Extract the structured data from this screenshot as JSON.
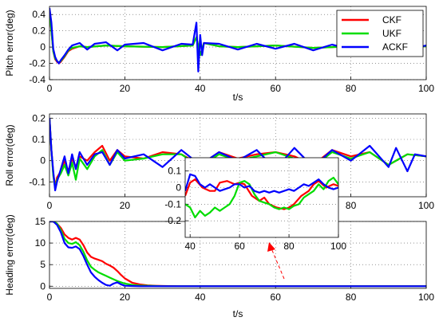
{
  "chart_data": [
    {
      "type": "line",
      "ylabel": "Pitch error(deg)",
      "xlabel": "t/s",
      "xlim": [
        0,
        100
      ],
      "ylim": [
        -0.4,
        0.5
      ],
      "xticks": [
        "0",
        "20",
        "40",
        "60",
        "80",
        "100"
      ],
      "yticks": [
        "0.4",
        "0.2",
        "0",
        "-0.2",
        "-0.4"
      ],
      "grid": true,
      "legend": {
        "position": "top-right",
        "entries": [
          "CKF",
          "UKF",
          "ACKF"
        ]
      },
      "series": [
        {
          "name": "CKF",
          "color": "#ff0000",
          "x": [
            0,
            0.5,
            1,
            1.5,
            2,
            2.5,
            3,
            4,
            5,
            6,
            8,
            10,
            15,
            20,
            30,
            38,
            39,
            40,
            41,
            45,
            50,
            60,
            70,
            80,
            90,
            100
          ],
          "y": [
            0.45,
            0.2,
            -0.05,
            -0.15,
            -0.18,
            -0.2,
            -0.18,
            -0.12,
            -0.05,
            -0.02,
            0.01,
            0.0,
            0.02,
            0.01,
            0.0,
            0.02,
            0.12,
            -0.1,
            0.05,
            0.01,
            0.0,
            0.02,
            -0.01,
            0.01,
            0.0,
            0.01
          ]
        },
        {
          "name": "UKF",
          "color": "#00dd00",
          "x": [
            0,
            0.5,
            1,
            1.5,
            2,
            2.5,
            3,
            4,
            5,
            6,
            8,
            10,
            15,
            20,
            30,
            38,
            39,
            40,
            41,
            45,
            50,
            60,
            70,
            80,
            90,
            100
          ],
          "y": [
            0.45,
            0.2,
            -0.05,
            -0.14,
            -0.17,
            -0.19,
            -0.17,
            -0.11,
            -0.04,
            -0.01,
            0.01,
            0.0,
            0.02,
            0.01,
            0.0,
            0.02,
            0.12,
            -0.1,
            0.05,
            0.01,
            0.0,
            0.02,
            -0.01,
            0.01,
            0.0,
            0.01
          ]
        },
        {
          "name": "ACKF",
          "color": "#0000ff",
          "x": [
            0,
            0.5,
            1,
            1.5,
            2,
            2.5,
            3,
            4,
            5,
            6,
            8,
            10,
            12,
            15,
            18,
            20,
            25,
            30,
            35,
            38,
            39,
            39.5,
            40,
            40.5,
            41,
            45,
            50,
            55,
            60,
            65,
            70,
            75,
            80,
            85,
            90,
            95,
            100
          ],
          "y": [
            0.48,
            0.3,
            -0.02,
            -0.12,
            -0.17,
            -0.2,
            -0.16,
            -0.1,
            -0.03,
            0.02,
            0.05,
            -0.03,
            0.04,
            0.06,
            -0.04,
            0.03,
            0.05,
            -0.04,
            0.04,
            0.03,
            0.3,
            -0.3,
            0.15,
            -0.1,
            0.05,
            0.04,
            -0.03,
            0.04,
            -0.02,
            0.04,
            -0.04,
            0.03,
            -0.03,
            0.04,
            0.03,
            -0.03,
            0.02
          ]
        }
      ]
    },
    {
      "type": "line",
      "ylabel": "Roll error(deg)",
      "xlabel": "",
      "xlim": [
        0,
        100
      ],
      "ylim": [
        -0.17,
        0.22
      ],
      "xticks": [
        "0",
        "20",
        "40",
        "60",
        "80",
        "100"
      ],
      "yticks": [
        "0.2",
        "0.1",
        "0",
        "-0.1"
      ],
      "grid": true,
      "series": [
        {
          "name": "CKF",
          "color": "#ff0000",
          "x": [
            0,
            0.5,
            1,
            1.5,
            2,
            3,
            4,
            5,
            6,
            7,
            8,
            10,
            12,
            14,
            16,
            18,
            20,
            25,
            30,
            35,
            40,
            45,
            50,
            55,
            60,
            65,
            70,
            75,
            80,
            85,
            90,
            95,
            100
          ],
          "y": [
            0.2,
            0.05,
            -0.06,
            -0.12,
            -0.08,
            -0.05,
            0.0,
            -0.05,
            0.01,
            -0.03,
            0.02,
            0.0,
            0.04,
            0.07,
            0.0,
            0.05,
            0.02,
            0.01,
            0.04,
            0.03,
            -0.02,
            0.04,
            0.01,
            0.03,
            0.04,
            0.02,
            -0.02,
            0.05,
            0.02,
            0.04,
            -0.02,
            0.03,
            0.02
          ]
        },
        {
          "name": "UKF",
          "color": "#00dd00",
          "x": [
            0,
            0.5,
            1,
            1.5,
            2,
            3,
            4,
            5,
            6,
            7,
            8,
            10,
            12,
            14,
            16,
            18,
            20,
            25,
            30,
            35,
            40,
            45,
            50,
            55,
            60,
            65,
            70,
            75,
            80,
            85,
            90,
            95,
            100
          ],
          "y": [
            0.2,
            0.05,
            -0.07,
            -0.13,
            -0.09,
            -0.06,
            -0.02,
            -0.07,
            -0.01,
            -0.09,
            0.01,
            -0.04,
            0.02,
            0.05,
            -0.02,
            0.04,
            0.0,
            0.01,
            0.03,
            0.03,
            -0.03,
            0.03,
            0.0,
            0.02,
            0.04,
            0.01,
            -0.03,
            0.04,
            0.01,
            0.04,
            -0.02,
            0.03,
            0.02
          ]
        },
        {
          "name": "ACKF",
          "color": "#0000ff",
          "x": [
            0,
            0.5,
            1,
            1.5,
            2,
            3,
            4,
            5,
            6,
            7,
            8,
            10,
            12,
            14,
            16,
            18,
            20,
            25,
            30,
            35,
            40,
            45,
            50,
            55,
            60,
            65,
            70,
            75,
            80,
            85,
            90,
            92,
            95,
            97,
            100
          ],
          "y": [
            0.2,
            0.05,
            -0.05,
            -0.14,
            -0.1,
            -0.04,
            0.02,
            -0.06,
            0.03,
            -0.04,
            0.04,
            -0.02,
            0.03,
            0.04,
            -0.02,
            0.05,
            0.01,
            0.03,
            -0.03,
            0.05,
            -0.02,
            0.04,
            0.0,
            0.05,
            -0.04,
            0.06,
            -0.03,
            0.05,
            0.0,
            0.07,
            -0.03,
            0.06,
            -0.05,
            0.03,
            0.02
          ]
        }
      ]
    },
    {
      "type": "line",
      "role": "inset",
      "xlim": [
        38,
        100
      ],
      "ylim": [
        -0.3,
        0.18
      ],
      "xticks": [
        "40",
        "60",
        "80",
        "100"
      ],
      "yticks": [
        "0.1",
        "0",
        "-0.1",
        "-0.2"
      ],
      "grid": true,
      "series": [
        {
          "name": "CKF",
          "color": "#ff0000",
          "x": [
            38,
            40,
            42,
            45,
            48,
            50,
            52,
            55,
            58,
            60,
            62,
            65,
            68,
            70,
            72,
            75,
            78,
            80,
            82,
            85,
            88,
            90,
            92,
            95,
            98,
            100
          ],
          "y": [
            -0.05,
            0.03,
            0.05,
            0.0,
            -0.02,
            -0.02,
            0.03,
            0.04,
            0.02,
            0.03,
            0.02,
            -0.05,
            -0.08,
            -0.06,
            -0.1,
            -0.12,
            -0.13,
            -0.12,
            -0.1,
            -0.05,
            -0.02,
            0.02,
            0.04,
            0.0,
            0.02,
            0.01
          ]
        },
        {
          "name": "UKF",
          "color": "#00dd00",
          "x": [
            38,
            40,
            42,
            44,
            46,
            48,
            50,
            52,
            54,
            56,
            58,
            60,
            62,
            64,
            66,
            68,
            70,
            72,
            74,
            76,
            78,
            80,
            82,
            84,
            86,
            88,
            90,
            92,
            94,
            96,
            98,
            100
          ],
          "y": [
            -0.1,
            -0.12,
            -0.18,
            -0.14,
            -0.17,
            -0.15,
            -0.12,
            -0.14,
            -0.12,
            -0.1,
            -0.05,
            0.03,
            0.04,
            0.02,
            -0.04,
            -0.08,
            -0.09,
            -0.1,
            -0.12,
            -0.13,
            -0.12,
            -0.13,
            -0.11,
            -0.1,
            -0.06,
            -0.04,
            -0.02,
            0.02,
            -0.01,
            0.04,
            0.06,
            0.02
          ]
        },
        {
          "name": "ACKF",
          "color": "#0000ff",
          "x": [
            38,
            40,
            42,
            44,
            46,
            48,
            50,
            52,
            54,
            56,
            58,
            60,
            62,
            64,
            66,
            68,
            70,
            72,
            74,
            76,
            78,
            80,
            82,
            84,
            86,
            88,
            90,
            92,
            94,
            96,
            98,
            100
          ],
          "y": [
            -0.02,
            0.08,
            0.07,
            0.02,
            0.0,
            0.02,
            0.0,
            -0.02,
            -0.01,
            0.0,
            0.02,
            0.02,
            0.0,
            0.01,
            -0.02,
            -0.03,
            -0.02,
            -0.03,
            -0.02,
            -0.03,
            -0.02,
            -0.01,
            -0.02,
            0.0,
            0.02,
            0.01,
            0.03,
            0.05,
            0.02,
            0.0,
            -0.01,
            0.0
          ]
        }
      ]
    },
    {
      "type": "line",
      "ylabel": "Heading error(deg)",
      "xlabel": "t/s",
      "xlim": [
        0,
        100
      ],
      "ylim": [
        -0.5,
        15
      ],
      "xticks": [
        "0",
        "20",
        "40",
        "60",
        "80",
        "100"
      ],
      "yticks": [
        "15",
        "10",
        "5",
        "0"
      ],
      "grid": true,
      "series": [
        {
          "name": "CKF",
          "color": "#ff0000",
          "x": [
            0,
            1,
            2,
            3,
            4,
            5,
            6,
            7,
            8,
            9,
            10,
            11,
            12,
            13,
            14,
            15,
            16,
            17,
            18,
            19,
            20,
            22,
            24,
            26,
            28,
            30,
            35,
            40,
            50,
            60,
            70,
            80,
            90,
            100
          ],
          "y": [
            15,
            15,
            14.5,
            13.5,
            12,
            11.2,
            10.8,
            11.2,
            10.8,
            9.5,
            7.8,
            6.8,
            6.4,
            6.1,
            5.8,
            5.2,
            4.8,
            4.3,
            3.5,
            2.6,
            1.8,
            0.8,
            0.4,
            0.2,
            0.1,
            0.05,
            0.0,
            0.0,
            0.0,
            0.0,
            0.0,
            0.0,
            0.0,
            0.0
          ]
        },
        {
          "name": "UKF",
          "color": "#00dd00",
          "x": [
            0,
            1,
            2,
            3,
            4,
            5,
            6,
            7,
            8,
            9,
            10,
            11,
            12,
            13,
            14,
            15,
            16,
            17,
            18,
            19,
            20,
            22,
            24,
            26,
            28,
            30,
            35,
            40,
            50,
            60,
            70,
            80,
            90,
            100
          ],
          "y": [
            15,
            15,
            14.5,
            13,
            11,
            10,
            9.8,
            10.2,
            9.5,
            8,
            6,
            4.5,
            3.8,
            3.2,
            2.8,
            2.4,
            2.0,
            1.6,
            1.2,
            0.9,
            0.6,
            0.3,
            0.15,
            0.1,
            0.05,
            0.0,
            0.0,
            0.0,
            0.0,
            0.0,
            0.0,
            0.0,
            0.0,
            0.0
          ]
        },
        {
          "name": "ACKF",
          "color": "#0000ff",
          "x": [
            0,
            1,
            2,
            3,
            4,
            5,
            6,
            7,
            8,
            9,
            10,
            11,
            12,
            13,
            14,
            15,
            16,
            17,
            18,
            19,
            20,
            22,
            24,
            26,
            28,
            30,
            35,
            40,
            50,
            60,
            70,
            80,
            90,
            100
          ],
          "y": [
            15,
            15,
            14.2,
            12.5,
            10,
            9.0,
            8.9,
            9.2,
            8.6,
            7,
            5,
            3.2,
            2.2,
            1.4,
            0.8,
            0.3,
            0.1,
            0.6,
            0.9,
            0.4,
            0.1,
            0.05,
            0.0,
            0.0,
            0.0,
            0.0,
            0.0,
            0.0,
            0.0,
            0.0,
            0.0,
            0.0,
            0.0,
            0.0
          ]
        }
      ]
    }
  ]
}
